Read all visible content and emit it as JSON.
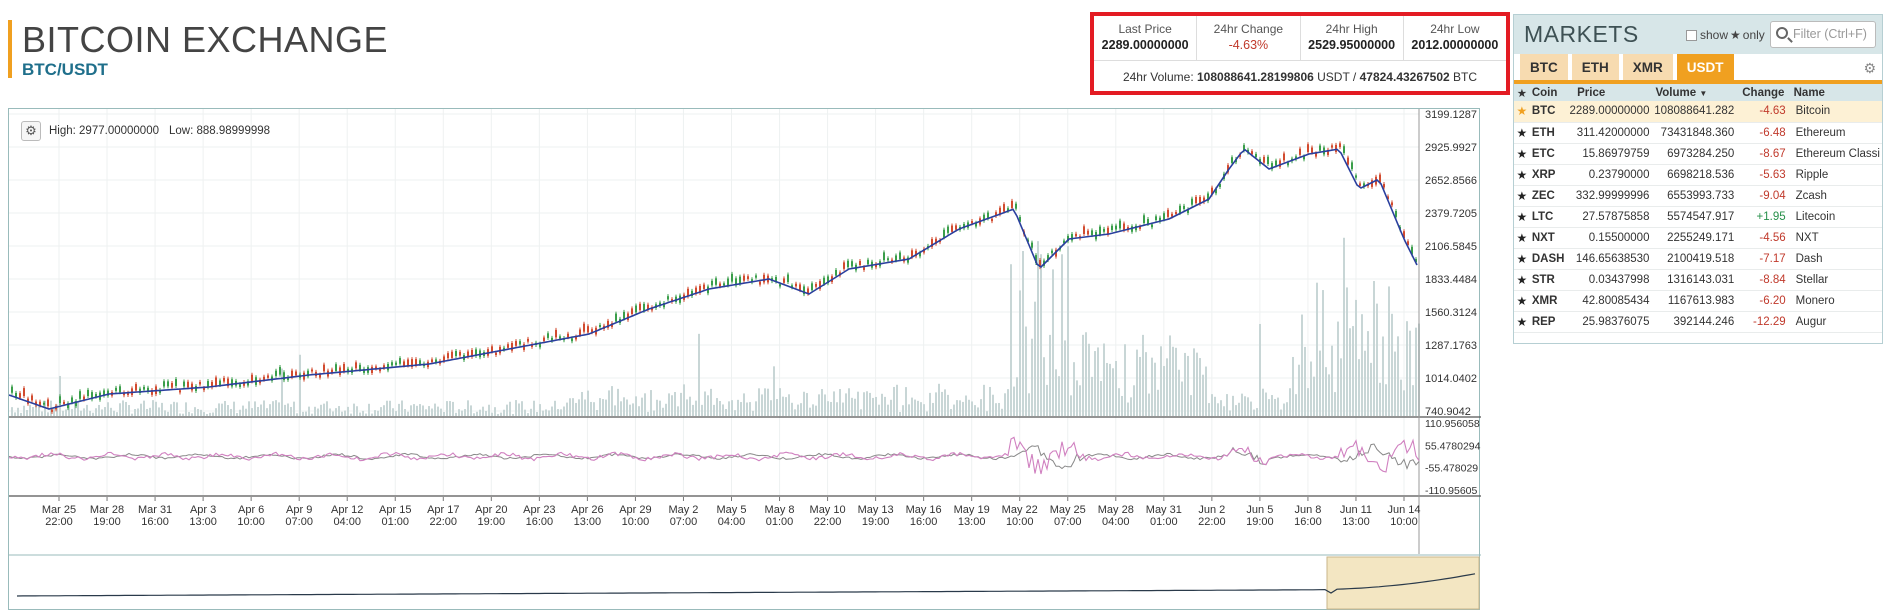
{
  "header": {
    "title": "BITCOIN EXCHANGE",
    "pair": "BTC/USDT"
  },
  "stats": {
    "last_price_label": "Last Price",
    "last_price": "2289.00000000",
    "change_label": "24hr Change",
    "change": "-4.63%",
    "high_label": "24hr High",
    "high": "2529.95000000",
    "low_label": "24hr Low",
    "low": "2012.00000000",
    "volume_prefix": "24hr Volume:",
    "volume_usdt": "108088641.28199806",
    "volume_usdt_unit": "USDT /",
    "volume_btc": "47824.43267502",
    "volume_btc_unit": "BTC"
  },
  "chart": {
    "high_text": "High: 2977.00000000",
    "low_text": "Low: 888.98999998",
    "price_ticks": [
      "3199.1287",
      "2925.9927",
      "2652.8566",
      "2379.7205",
      "2106.5845",
      "1833.4484",
      "1560.3124",
      "1287.1763",
      "1014.0402",
      "740.9042"
    ],
    "osc_ticks": [
      "110.956058",
      "55.4780294",
      "-55.478029",
      "-110.95605"
    ],
    "time_ticks": [
      [
        "Mar 25",
        "22:00"
      ],
      [
        "Mar 28",
        "19:00"
      ],
      [
        "Mar 31",
        "16:00"
      ],
      [
        "Apr 3",
        "13:00"
      ],
      [
        "Apr 6",
        "10:00"
      ],
      [
        "Apr 9",
        "07:00"
      ],
      [
        "Apr 12",
        "04:00"
      ],
      [
        "Apr 15",
        "01:00"
      ],
      [
        "Apr 17",
        "22:00"
      ],
      [
        "Apr 20",
        "19:00"
      ],
      [
        "Apr 23",
        "16:00"
      ],
      [
        "Apr 26",
        "13:00"
      ],
      [
        "Apr 29",
        "10:00"
      ],
      [
        "May 2",
        "07:00"
      ],
      [
        "May 5",
        "04:00"
      ],
      [
        "May 8",
        "01:00"
      ],
      [
        "May 10",
        "22:00"
      ],
      [
        "May 13",
        "19:00"
      ],
      [
        "May 16",
        "16:00"
      ],
      [
        "May 19",
        "13:00"
      ],
      [
        "May 22",
        "10:00"
      ],
      [
        "May 25",
        "07:00"
      ],
      [
        "May 28",
        "04:00"
      ],
      [
        "May 31",
        "01:00"
      ],
      [
        "Jun 2",
        "22:00"
      ],
      [
        "Jun 5",
        "19:00"
      ],
      [
        "Jun 8",
        "16:00"
      ],
      [
        "Jun 11",
        "13:00"
      ],
      [
        "Jun 14",
        "10:00"
      ]
    ],
    "colors": {
      "ma": "#2a3f9e",
      "candle_up": "#3a9e4a",
      "candle_down": "#d24b2f",
      "volume": "#c8d6d6",
      "osc1": "#d080c0",
      "osc2": "#888888",
      "nav_sel": "#f3e6c2"
    }
  },
  "markets": {
    "title": "MARKETS",
    "show_label": "show",
    "only_label": "only",
    "filter_placeholder": "Filter (Ctrl+F)",
    "tabs": [
      "BTC",
      "ETH",
      "XMR",
      "USDT"
    ],
    "active_tab": "USDT",
    "columns": [
      "Coin",
      "Price",
      "Volume",
      "Change",
      "Name"
    ],
    "rows": [
      {
        "coin": "BTC",
        "price": "2289.00000000",
        "volume": "108088641.282",
        "change": "-4.63",
        "name": "Bitcoin",
        "fav": true
      },
      {
        "coin": "ETH",
        "price": "311.42000000",
        "volume": "73431848.360",
        "change": "-6.48",
        "name": "Ethereum",
        "fav": false
      },
      {
        "coin": "ETC",
        "price": "15.86979759",
        "volume": "6973284.250",
        "change": "-8.67",
        "name": "Ethereum Classi",
        "fav": false
      },
      {
        "coin": "XRP",
        "price": "0.23790000",
        "volume": "6698218.536",
        "change": "-5.63",
        "name": "Ripple",
        "fav": false
      },
      {
        "coin": "ZEC",
        "price": "332.99999996",
        "volume": "6553993.733",
        "change": "-9.04",
        "name": "Zcash",
        "fav": false
      },
      {
        "coin": "LTC",
        "price": "27.57875858",
        "volume": "5574547.917",
        "change": "+1.95",
        "name": "Litecoin",
        "fav": false
      },
      {
        "coin": "NXT",
        "price": "0.15500000",
        "volume": "2255249.171",
        "change": "-4.56",
        "name": "NXT",
        "fav": false
      },
      {
        "coin": "DASH",
        "price": "146.65638530",
        "volume": "2100419.518",
        "change": "-7.17",
        "name": "Dash",
        "fav": false
      },
      {
        "coin": "STR",
        "price": "0.03437998",
        "volume": "1316143.031",
        "change": "-8.84",
        "name": "Stellar",
        "fav": false
      },
      {
        "coin": "XMR",
        "price": "42.80085434",
        "volume": "1167613.983",
        "change": "-6.20",
        "name": "Monero",
        "fav": false
      },
      {
        "coin": "REP",
        "price": "25.98376075",
        "volume": "392144.246",
        "change": "-12.29",
        "name": "Augur",
        "fav": false
      }
    ]
  }
}
